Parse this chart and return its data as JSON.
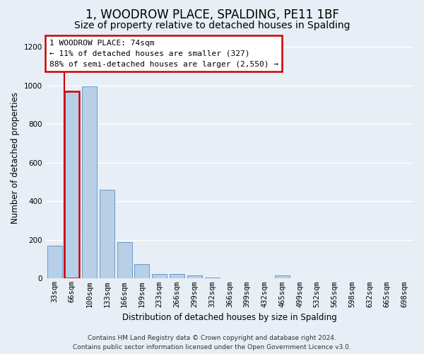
{
  "title": "1, WOODROW PLACE, SPALDING, PE11 1BF",
  "subtitle": "Size of property relative to detached houses in Spalding",
  "xlabel": "Distribution of detached houses by size in Spalding",
  "ylabel": "Number of detached properties",
  "categories": [
    "33sqm",
    "66sqm",
    "100sqm",
    "133sqm",
    "166sqm",
    "199sqm",
    "233sqm",
    "266sqm",
    "299sqm",
    "332sqm",
    "366sqm",
    "399sqm",
    "432sqm",
    "465sqm",
    "499sqm",
    "532sqm",
    "565sqm",
    "598sqm",
    "632sqm",
    "665sqm",
    "698sqm"
  ],
  "values": [
    170,
    970,
    995,
    460,
    190,
    75,
    25,
    22,
    15,
    5,
    0,
    0,
    0,
    15,
    0,
    0,
    0,
    0,
    0,
    0,
    0
  ],
  "bar_color": "#b8cfe8",
  "bar_edge_color": "#6699cc",
  "highlight_bar_index": 1,
  "highlight_color": "#cc0000",
  "annotation_lines": [
    "1 WOODROW PLACE: 74sqm",
    "← 11% of detached houses are smaller (327)",
    "88% of semi-detached houses are larger (2,550) →"
  ],
  "annotation_box_color": "white",
  "annotation_box_edge_color": "#cc0000",
  "ylim": [
    0,
    1250
  ],
  "yticks": [
    0,
    200,
    400,
    600,
    800,
    1000,
    1200
  ],
  "footer_line1": "Contains HM Land Registry data © Crown copyright and database right 2024.",
  "footer_line2": "Contains public sector information licensed under the Open Government Licence v3.0.",
  "bg_color": "#e8eef5",
  "grid_color": "white",
  "title_fontsize": 12,
  "subtitle_fontsize": 10,
  "axis_label_fontsize": 8.5,
  "tick_fontsize": 7.5,
  "annotation_fontsize": 8,
  "footer_fontsize": 6.5
}
